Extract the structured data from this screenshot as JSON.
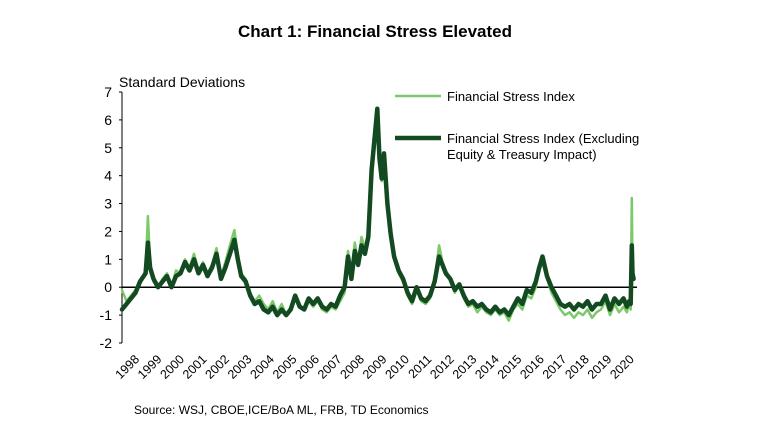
{
  "chart_data": {
    "type": "line",
    "title": "Chart 1: Financial Stress Elevated",
    "ylabel": "Standard Deviations",
    "ylim": [
      -2,
      7
    ],
    "yticks": [
      "-2",
      "-1",
      "0",
      "1",
      "2",
      "3",
      "4",
      "5",
      "6",
      "7"
    ],
    "xlim": [
      1997.5,
      2020.4
    ],
    "xticks": [
      "1998",
      "1999",
      "2000",
      "2001",
      "2002",
      "2003",
      "2004",
      "2005",
      "2006",
      "2007",
      "2008",
      "2009",
      "2010",
      "2011",
      "2012",
      "2013",
      "2014",
      "2015",
      "2016",
      "2017",
      "2018",
      "2019",
      "2020"
    ],
    "legend_position": "top-right",
    "series": [
      {
        "name": "Financial Stress Index",
        "color": "#7cc96a",
        "x": [
          1997.5,
          1997.7,
          1997.9,
          1998.1,
          1998.3,
          1998.55,
          1998.65,
          1998.75,
          1998.9,
          1999.1,
          1999.3,
          1999.5,
          1999.7,
          1999.9,
          2000.1,
          2000.3,
          2000.5,
          2000.7,
          2000.9,
          2001.1,
          2001.3,
          2001.5,
          2001.7,
          2001.9,
          2002.1,
          2002.3,
          2002.5,
          2002.65,
          2002.8,
          2003.0,
          2003.2,
          2003.4,
          2003.6,
          2003.8,
          2004.0,
          2004.2,
          2004.4,
          2004.6,
          2004.8,
          2005.0,
          2005.2,
          2005.4,
          2005.6,
          2005.8,
          2006.0,
          2006.2,
          2006.4,
          2006.6,
          2006.8,
          2007.0,
          2007.2,
          2007.4,
          2007.55,
          2007.7,
          2007.85,
          2008.0,
          2008.15,
          2008.3,
          2008.45,
          2008.6,
          2008.75,
          2008.85,
          2008.95,
          2009.05,
          2009.15,
          2009.3,
          2009.45,
          2009.6,
          2009.8,
          2010.0,
          2010.2,
          2010.4,
          2010.6,
          2010.8,
          2011.0,
          2011.2,
          2011.4,
          2011.6,
          2011.75,
          2011.9,
          2012.1,
          2012.3,
          2012.5,
          2012.7,
          2012.9,
          2013.1,
          2013.3,
          2013.5,
          2013.7,
          2013.9,
          2014.1,
          2014.3,
          2014.5,
          2014.7,
          2014.9,
          2015.1,
          2015.3,
          2015.5,
          2015.7,
          2015.9,
          2016.05,
          2016.2,
          2016.4,
          2016.6,
          2016.8,
          2017.0,
          2017.2,
          2017.4,
          2017.6,
          2017.8,
          2018.0,
          2018.2,
          2018.4,
          2018.6,
          2018.8,
          2019.0,
          2019.2,
          2019.4,
          2019.6,
          2019.8,
          2019.95,
          2020.05,
          2020.12,
          2020.17,
          2020.2,
          2020.25
        ],
        "y": [
          -0.1,
          -0.5,
          -0.3,
          -0.1,
          0.1,
          0.6,
          2.55,
          0.9,
          0.2,
          0.0,
          0.3,
          0.5,
          0.0,
          0.6,
          0.5,
          1.0,
          0.7,
          1.2,
          0.6,
          0.9,
          0.5,
          0.8,
          1.4,
          0.4,
          0.9,
          1.5,
          2.05,
          1.2,
          0.5,
          0.3,
          -0.2,
          -0.5,
          -0.3,
          -0.6,
          -0.8,
          -0.5,
          -0.9,
          -0.6,
          -1.0,
          -0.7,
          -0.3,
          -0.7,
          -0.8,
          -0.5,
          -0.7,
          -0.5,
          -0.8,
          -0.9,
          -0.7,
          -0.8,
          -0.5,
          -0.2,
          1.3,
          0.4,
          1.6,
          0.9,
          1.8,
          1.4,
          2.0,
          4.5,
          5.8,
          6.2,
          4.8,
          3.8,
          4.4,
          2.8,
          1.8,
          1.0,
          0.5,
          0.2,
          -0.3,
          -0.6,
          -0.1,
          -0.5,
          -0.6,
          -0.4,
          0.3,
          1.5,
          0.9,
          0.6,
          0.3,
          -0.2,
          0.1,
          -0.4,
          -0.7,
          -0.6,
          -0.9,
          -0.7,
          -0.9,
          -1.0,
          -0.8,
          -1.0,
          -0.9,
          -1.2,
          -0.8,
          -0.6,
          -0.8,
          -0.3,
          -0.4,
          0.0,
          0.6,
          0.9,
          0.3,
          -0.2,
          -0.5,
          -0.8,
          -1.0,
          -0.9,
          -1.1,
          -0.9,
          -1.0,
          -0.8,
          -1.1,
          -0.9,
          -0.8,
          -0.5,
          -1.0,
          -0.6,
          -0.9,
          -0.7,
          -0.9,
          -0.6,
          -0.8,
          3.2,
          0.6,
          0.3
        ],
        "line_width": 2.5
      },
      {
        "name": "Financial Stress Index (Excluding Equity & Treasury Impact)",
        "color": "#144a22",
        "x": [
          1997.5,
          1997.7,
          1997.9,
          1998.1,
          1998.3,
          1998.55,
          1998.65,
          1998.75,
          1998.9,
          1999.1,
          1999.3,
          1999.5,
          1999.7,
          1999.9,
          2000.1,
          2000.3,
          2000.5,
          2000.7,
          2000.9,
          2001.1,
          2001.3,
          2001.5,
          2001.7,
          2001.9,
          2002.1,
          2002.3,
          2002.5,
          2002.65,
          2002.8,
          2003.0,
          2003.2,
          2003.4,
          2003.6,
          2003.8,
          2004.0,
          2004.2,
          2004.4,
          2004.6,
          2004.8,
          2005.0,
          2005.2,
          2005.4,
          2005.6,
          2005.8,
          2006.0,
          2006.2,
          2006.4,
          2006.6,
          2006.8,
          2007.0,
          2007.2,
          2007.4,
          2007.55,
          2007.7,
          2007.85,
          2008.0,
          2008.15,
          2008.3,
          2008.45,
          2008.6,
          2008.75,
          2008.85,
          2008.95,
          2009.05,
          2009.15,
          2009.3,
          2009.45,
          2009.6,
          2009.8,
          2010.0,
          2010.2,
          2010.4,
          2010.6,
          2010.8,
          2011.0,
          2011.2,
          2011.4,
          2011.6,
          2011.75,
          2011.9,
          2012.1,
          2012.3,
          2012.5,
          2012.7,
          2012.9,
          2013.1,
          2013.3,
          2013.5,
          2013.7,
          2013.9,
          2014.1,
          2014.3,
          2014.5,
          2014.7,
          2014.9,
          2015.1,
          2015.3,
          2015.5,
          2015.7,
          2015.9,
          2016.05,
          2016.2,
          2016.4,
          2016.6,
          2016.8,
          2017.0,
          2017.2,
          2017.4,
          2017.6,
          2017.8,
          2018.0,
          2018.2,
          2018.4,
          2018.6,
          2018.8,
          2019.0,
          2019.2,
          2019.4,
          2019.6,
          2019.8,
          2019.95,
          2020.05,
          2020.12,
          2020.17,
          2020.2,
          2020.25
        ],
        "y": [
          -0.8,
          -0.6,
          -0.4,
          -0.2,
          0.2,
          0.5,
          1.6,
          0.7,
          0.3,
          0.0,
          0.2,
          0.4,
          0.0,
          0.4,
          0.5,
          0.9,
          0.6,
          1.0,
          0.5,
          0.8,
          0.4,
          0.7,
          1.2,
          0.3,
          0.7,
          1.2,
          1.7,
          1.0,
          0.4,
          0.2,
          -0.3,
          -0.6,
          -0.5,
          -0.8,
          -0.9,
          -0.7,
          -1.0,
          -0.8,
          -1.0,
          -0.8,
          -0.3,
          -0.7,
          -0.8,
          -0.4,
          -0.6,
          -0.4,
          -0.7,
          -0.8,
          -0.6,
          -0.7,
          -0.3,
          0.0,
          1.1,
          0.3,
          1.3,
          0.8,
          1.5,
          1.2,
          1.8,
          4.2,
          5.5,
          6.4,
          4.6,
          3.9,
          4.8,
          3.0,
          1.9,
          1.1,
          0.6,
          0.3,
          -0.2,
          -0.5,
          0.0,
          -0.4,
          -0.5,
          -0.3,
          0.2,
          1.1,
          0.8,
          0.5,
          0.3,
          -0.1,
          0.1,
          -0.3,
          -0.6,
          -0.5,
          -0.7,
          -0.6,
          -0.8,
          -0.9,
          -0.7,
          -0.9,
          -0.8,
          -1.0,
          -0.7,
          -0.4,
          -0.6,
          -0.1,
          -0.2,
          0.2,
          0.7,
          1.1,
          0.4,
          0.0,
          -0.3,
          -0.6,
          -0.7,
          -0.6,
          -0.8,
          -0.6,
          -0.7,
          -0.5,
          -0.8,
          -0.6,
          -0.6,
          -0.3,
          -0.8,
          -0.4,
          -0.6,
          -0.4,
          -0.7,
          -0.5,
          -0.6,
          1.5,
          0.5,
          0.3
        ],
        "line_width": 4.5
      }
    ]
  },
  "source": "Source: WSJ, CBOE,ICE/BoA ML, FRB, TD Economics"
}
